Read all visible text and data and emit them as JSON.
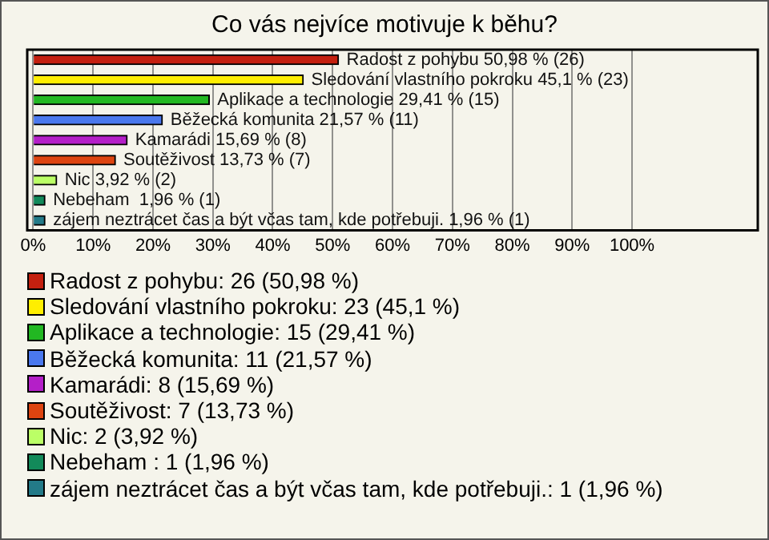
{
  "chart_data": {
    "type": "bar",
    "orientation": "horizontal",
    "title": "Co vás nejvíce motivuje k běhu?",
    "categories": [
      null,
      null,
      null,
      null,
      null,
      null,
      null,
      null,
      null
    ],
    "values": [
      50.98,
      45.1,
      29.41,
      21.57,
      15.69,
      13.73,
      3.92,
      1.96,
      1.96
    ],
    "colors": [
      "#c4200f",
      "#ffee00",
      "#22b822",
      "#4a78ee",
      "#b41fc8",
      "#dd4410",
      "#bbff66",
      "#128a5a",
      "#237a88"
    ],
    "value_labels": [
      "Radost z pohybu 50,98 % (26)",
      "Sledování vlastního pokroku 45,1 % (23)",
      "Aplikace a technologie 29,41 % (15)",
      "Běžecká komunita 21,57 % (11)",
      "Kamarádi 15,69 % (8)",
      "Soutěživost 13,73 % (7)",
      "Nic 3,92 % (2)",
      "Nebeham  1,96 % (1)",
      "zájem neztrácet čas a být včas tam, kde potřebuji. 1,96 % (1)"
    ],
    "xlim": [
      -1,
      121
    ],
    "xticks": [
      {
        "value": 0,
        "label": "0%"
      },
      {
        "value": 10,
        "label": "10%"
      },
      {
        "value": 20,
        "label": "20%"
      },
      {
        "value": 30,
        "label": "30%"
      },
      {
        "value": 40,
        "label": "40%"
      },
      {
        "value": 50,
        "label": "50%"
      },
      {
        "value": 60,
        "label": "60%"
      },
      {
        "value": 70,
        "label": "70%"
      },
      {
        "value": 80,
        "label": "80%"
      },
      {
        "value": 90,
        "label": "90%"
      },
      {
        "value": 100,
        "label": "100%"
      }
    ],
    "grid": "x",
    "tick_labels": "x",
    "annotations": [
      "Radost z pohybu: 26 (50,98 %)",
      "Sledování vlastního pokroku: 23 (45,1 %)",
      "Aplikace a technologie: 15 (29,41 %)",
      "Běžecká komunita: 11 (21,57 %)",
      "Kamarádi: 8 (15,69 %)",
      "Soutěživost: 7 (13,73 %)",
      "Nic: 2 (3,92 %)",
      "Nebeham : 1 (1,96 %)",
      "zájem neztrácet čas a být včas tam, kde potřebuji.: 1 (1,96 %)"
    ]
  }
}
